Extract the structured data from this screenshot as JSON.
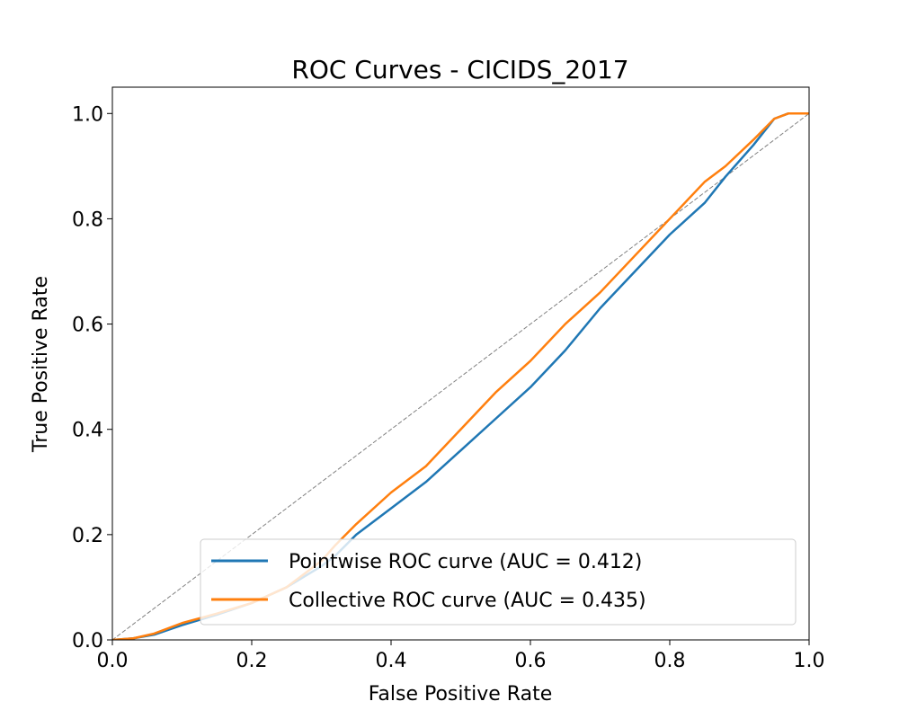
{
  "chart_data": {
    "type": "line",
    "title": "ROC Curves - CICIDS_2017",
    "xlabel": "False Positive Rate",
    "ylabel": "True Positive Rate",
    "xlim": [
      0.0,
      1.0
    ],
    "ylim": [
      0.0,
      1.05
    ],
    "x_ticks": [
      "0.0",
      "0.2",
      "0.4",
      "0.6",
      "0.8",
      "1.0"
    ],
    "y_ticks": [
      "0.0",
      "0.2",
      "0.4",
      "0.6",
      "0.8",
      "1.0"
    ],
    "grid": false,
    "legend_position": "lower-right",
    "series": [
      {
        "name": "Pointwise ROC curve (AUC = 0.412)",
        "color": "#1f77b4",
        "x": [
          0.0,
          0.03,
          0.06,
          0.1,
          0.15,
          0.2,
          0.25,
          0.3,
          0.32,
          0.35,
          0.4,
          0.45,
          0.5,
          0.55,
          0.6,
          0.65,
          0.7,
          0.75,
          0.8,
          0.85,
          0.88,
          0.92,
          0.95,
          0.97,
          1.0
        ],
        "y": [
          0.0,
          0.003,
          0.01,
          0.028,
          0.048,
          0.07,
          0.1,
          0.14,
          0.16,
          0.2,
          0.25,
          0.3,
          0.36,
          0.42,
          0.48,
          0.55,
          0.63,
          0.7,
          0.77,
          0.83,
          0.88,
          0.94,
          0.99,
          1.0,
          1.0
        ]
      },
      {
        "name": "Collective ROC curve (AUC = 0.435)",
        "color": "#ff7f0e",
        "x": [
          0.0,
          0.03,
          0.06,
          0.1,
          0.15,
          0.2,
          0.25,
          0.3,
          0.32,
          0.35,
          0.4,
          0.45,
          0.5,
          0.55,
          0.6,
          0.65,
          0.7,
          0.75,
          0.8,
          0.85,
          0.88,
          0.92,
          0.95,
          0.97,
          1.0
        ],
        "y": [
          0.0,
          0.003,
          0.012,
          0.032,
          0.05,
          0.07,
          0.1,
          0.15,
          0.18,
          0.22,
          0.28,
          0.33,
          0.4,
          0.47,
          0.53,
          0.6,
          0.66,
          0.73,
          0.8,
          0.87,
          0.9,
          0.95,
          0.99,
          1.0,
          1.0
        ]
      },
      {
        "name": "",
        "color": "#808080",
        "dashed": true,
        "x": [
          0.0,
          1.0
        ],
        "y": [
          0.0,
          1.0
        ]
      }
    ]
  }
}
